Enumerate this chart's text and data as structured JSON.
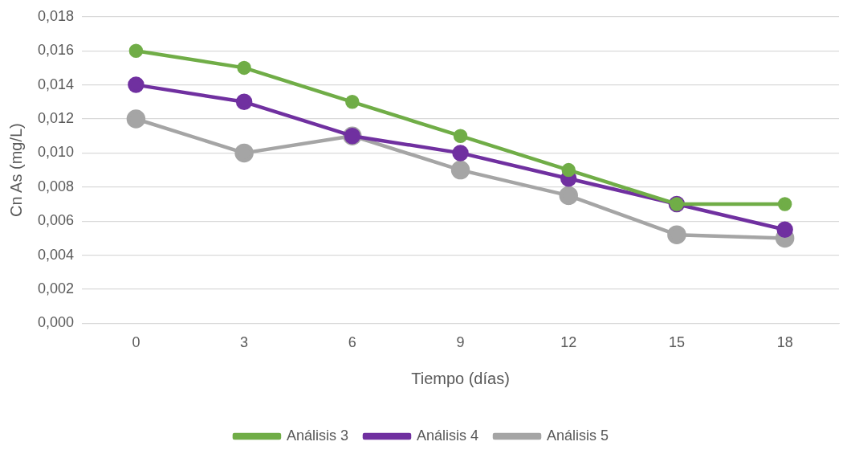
{
  "chart_data": {
    "type": "line",
    "xlabel": "Tiempo (días)",
    "ylabel": "Cn As (mg/L)",
    "categories": [
      "0",
      "3",
      "6",
      "9",
      "12",
      "15",
      "18"
    ],
    "series": [
      {
        "name": "Análisis 3",
        "color": "#70ad47",
        "values": [
          0.016,
          0.015,
          0.013,
          0.011,
          0.009,
          0.007,
          0.007
        ]
      },
      {
        "name": "Análisis 4",
        "color": "#7030a0",
        "values": [
          0.014,
          0.013,
          0.011,
          0.01,
          0.0085,
          0.007,
          0.0055
        ]
      },
      {
        "name": "Análisis 5",
        "color": "#a5a5a5",
        "values": [
          0.012,
          0.01,
          0.011,
          0.009,
          0.0075,
          0.0052,
          0.005
        ]
      }
    ],
    "ylim": [
      0,
      0.018
    ],
    "yticks": [
      {
        "value": 0,
        "label": "0,000"
      },
      {
        "value": 0.002,
        "label": "0,002"
      },
      {
        "value": 0.004,
        "label": "0,004"
      },
      {
        "value": 0.006,
        "label": "0,006"
      },
      {
        "value": 0.008,
        "label": "0,008"
      },
      {
        "value": 0.01,
        "label": "0,010"
      },
      {
        "value": 0.012,
        "label": "0,012"
      },
      {
        "value": 0.014,
        "label": "0,014"
      },
      {
        "value": 0.016,
        "label": "0,016"
      },
      {
        "value": 0.018,
        "label": "0,018"
      }
    ],
    "grid": "y",
    "legend": "bottom",
    "marker": "circle",
    "line_style": "solid"
  }
}
